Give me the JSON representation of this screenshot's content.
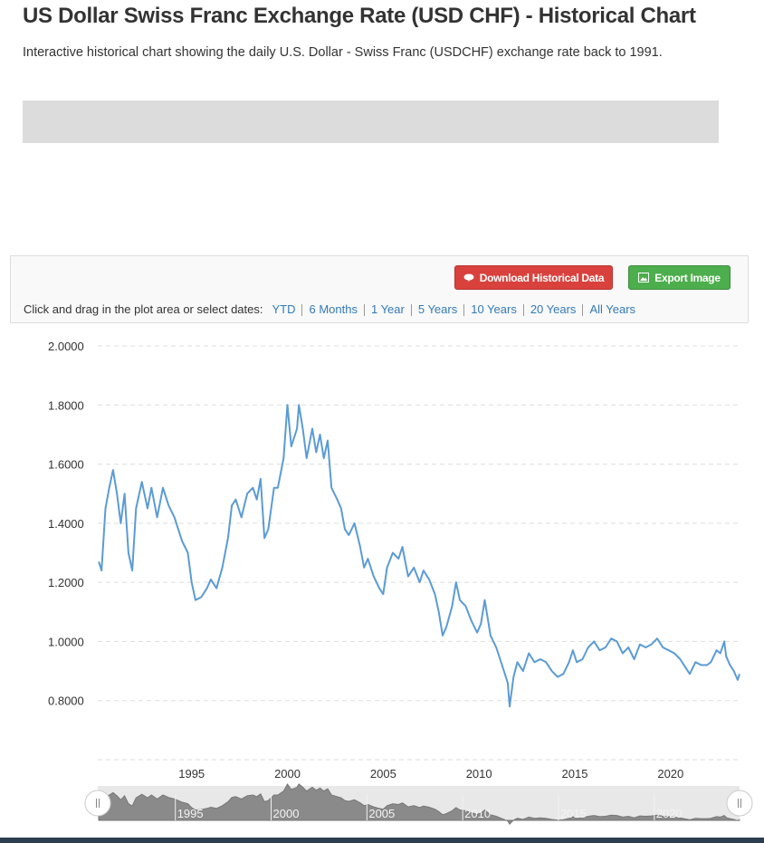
{
  "header": {
    "title": "US Dollar Swiss Franc Exchange Rate (USD CHF) - Historical Chart",
    "subtitle": "Interactive historical chart showing the daily U.S. Dollar - Swiss Franc (USDCHF) exchange rate back to 1991."
  },
  "toolbar": {
    "download": "Download Historical Data",
    "export": "Export Image",
    "prompt": "Click and drag in the plot area or select dates:",
    "ranges": [
      "YTD",
      "6 Months",
      "1 Year",
      "5 Years",
      "10 Years",
      "20 Years",
      "All Years"
    ]
  },
  "chart_data": {
    "type": "line",
    "color": "#5b9bd5",
    "grid": true,
    "xlim": [
      1990.1,
      2023.6
    ],
    "ylim": [
      0.6,
      2.0
    ],
    "xticks": [
      1995,
      2000,
      2005,
      2010,
      2015,
      2020
    ],
    "yticks": [
      {
        "value": 0.8,
        "label": "0.8000"
      },
      {
        "value": 1.0,
        "label": "1.0000"
      },
      {
        "value": 1.2,
        "label": "1.2000"
      },
      {
        "value": 1.4,
        "label": "1.4000"
      },
      {
        "value": 1.6,
        "label": "1.6000"
      },
      {
        "value": 1.8,
        "label": "1.8000"
      },
      {
        "value": 2.0,
        "label": "2.0000"
      }
    ],
    "x": [
      1990.15,
      1990.3,
      1990.5,
      1990.7,
      1990.9,
      1991.1,
      1991.3,
      1991.5,
      1991.7,
      1991.9,
      1992.1,
      1992.4,
      1992.7,
      1992.9,
      1993.2,
      1993.5,
      1993.8,
      1994.1,
      1994.5,
      1994.8,
      1995.0,
      1995.2,
      1995.5,
      1995.8,
      1996.0,
      1996.3,
      1996.6,
      1996.9,
      1997.1,
      1997.3,
      1997.6,
      1997.9,
      1998.2,
      1998.4,
      1998.6,
      1998.8,
      1999.0,
      1999.3,
      1999.5,
      1999.8,
      2000.0,
      2000.2,
      2000.5,
      2000.6,
      2000.8,
      2001.0,
      2001.3,
      2001.5,
      2001.7,
      2001.9,
      2002.1,
      2002.3,
      2002.6,
      2002.8,
      2003.0,
      2003.2,
      2003.5,
      2003.8,
      2004.0,
      2004.2,
      2004.5,
      2004.8,
      2005.0,
      2005.2,
      2005.5,
      2005.8,
      2006.0,
      2006.3,
      2006.6,
      2006.9,
      2007.1,
      2007.4,
      2007.7,
      2007.9,
      2008.1,
      2008.3,
      2008.6,
      2008.8,
      2009.0,
      2009.3,
      2009.6,
      2009.9,
      2010.1,
      2010.3,
      2010.4,
      2010.6,
      2010.9,
      2011.2,
      2011.5,
      2011.6,
      2011.8,
      2012.0,
      2012.3,
      2012.6,
      2012.9,
      2013.2,
      2013.5,
      2013.8,
      2014.1,
      2014.4,
      2014.7,
      2014.9,
      2015.1,
      2015.4,
      2015.7,
      2016.0,
      2016.3,
      2016.6,
      2016.9,
      2017.2,
      2017.5,
      2017.8,
      2018.1,
      2018.4,
      2018.7,
      2019.0,
      2019.3,
      2019.6,
      2019.9,
      2020.2,
      2020.5,
      2020.8,
      2021.0,
      2021.3,
      2021.6,
      2021.9,
      2022.1,
      2022.4,
      2022.6,
      2022.8,
      2022.9,
      2023.1,
      2023.3,
      2023.5,
      2023.6
    ],
    "values": [
      1.27,
      1.24,
      1.45,
      1.52,
      1.58,
      1.5,
      1.4,
      1.5,
      1.3,
      1.24,
      1.45,
      1.54,
      1.45,
      1.52,
      1.42,
      1.52,
      1.46,
      1.42,
      1.34,
      1.3,
      1.2,
      1.14,
      1.15,
      1.18,
      1.21,
      1.18,
      1.25,
      1.35,
      1.46,
      1.48,
      1.42,
      1.5,
      1.52,
      1.48,
      1.55,
      1.35,
      1.38,
      1.52,
      1.52,
      1.62,
      1.8,
      1.66,
      1.72,
      1.8,
      1.72,
      1.62,
      1.72,
      1.64,
      1.7,
      1.62,
      1.68,
      1.52,
      1.48,
      1.45,
      1.38,
      1.36,
      1.4,
      1.32,
      1.25,
      1.28,
      1.22,
      1.18,
      1.16,
      1.25,
      1.3,
      1.28,
      1.32,
      1.22,
      1.25,
      1.2,
      1.24,
      1.21,
      1.16,
      1.1,
      1.02,
      1.05,
      1.12,
      1.2,
      1.14,
      1.12,
      1.07,
      1.03,
      1.06,
      1.14,
      1.1,
      1.02,
      0.98,
      0.92,
      0.86,
      0.78,
      0.88,
      0.93,
      0.9,
      0.96,
      0.93,
      0.94,
      0.93,
      0.9,
      0.88,
      0.89,
      0.93,
      0.97,
      0.93,
      0.94,
      0.98,
      1.0,
      0.97,
      0.98,
      1.01,
      1.0,
      0.96,
      0.98,
      0.94,
      0.99,
      0.98,
      0.99,
      1.01,
      0.98,
      0.97,
      0.96,
      0.94,
      0.91,
      0.89,
      0.93,
      0.92,
      0.92,
      0.93,
      0.97,
      0.96,
      1.0,
      0.95,
      0.92,
      0.9,
      0.87,
      0.89
    ]
  }
}
